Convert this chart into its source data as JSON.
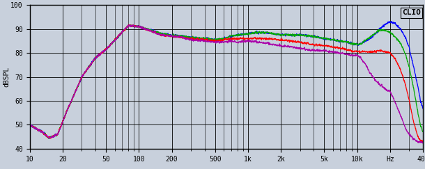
{
  "title": "CLIO",
  "ylabel": "dBSPL",
  "xlim": [
    10,
    40000
  ],
  "ylim": [
    40,
    100
  ],
  "yticks": [
    40,
    50,
    60,
    70,
    80,
    90,
    100
  ],
  "xticks": [
    10,
    20,
    50,
    100,
    200,
    500,
    1000,
    2000,
    5000,
    10000,
    20000,
    40000
  ],
  "xticklabels": [
    "10",
    "20",
    "50",
    "100",
    "200",
    "500",
    "1k",
    "2k",
    "5k",
    "10k",
    "Hz",
    "40k"
  ],
  "bg_color": "#c8d0dc",
  "plot_bg_color": "#c8d0dc",
  "line_colors": [
    "blue",
    "#00aa00",
    "red",
    "#aa00aa"
  ],
  "line_width": 0.9,
  "grid_color": "#000000",
  "grid_major_lw": 0.6,
  "grid_minor_lw": 0.4,
  "tick_fontsize": 7,
  "ylabel_fontsize": 7,
  "title_fontsize": 8
}
